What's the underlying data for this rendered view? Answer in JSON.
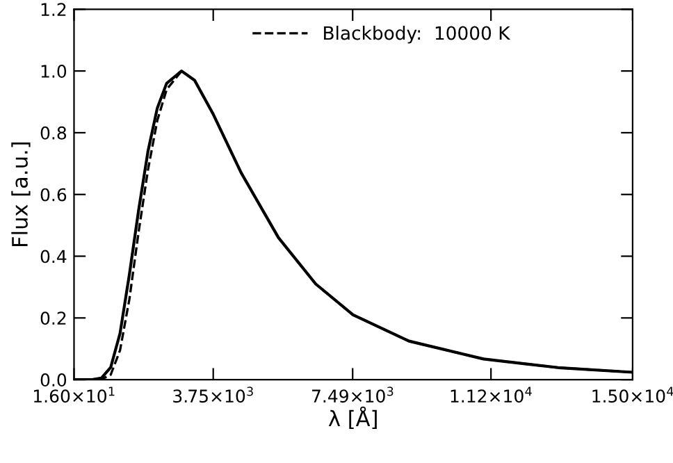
{
  "chart_data": {
    "type": "line",
    "xlabel": "λ [Å]",
    "ylabel": "Flux [a.u.]",
    "xlim": [
      16,
      15000
    ],
    "ylim": [
      0,
      1.2
    ],
    "xticks": [
      {
        "value": 16,
        "label": "1.60×10$^{1}$"
      },
      {
        "value": 3750,
        "label": "3.75×10$^{3}$"
      },
      {
        "value": 7490,
        "label": "7.49×10$^{3}$"
      },
      {
        "value": 11200,
        "label": "1.12×10$^{4}$"
      },
      {
        "value": 15000,
        "label": "1.50×10$^{4}$"
      }
    ],
    "yticks": [
      {
        "value": 0,
        "label": "0.0"
      },
      {
        "value": 0.2,
        "label": "0.2"
      },
      {
        "value": 0.4,
        "label": "0.4"
      },
      {
        "value": 0.6,
        "label": "0.6"
      },
      {
        "value": 0.8,
        "label": "0.8"
      },
      {
        "value": 1.0,
        "label": "1.0"
      },
      {
        "value": 1.2,
        "label": "1.2"
      }
    ],
    "legend": "top",
    "grid": false,
    "series": [
      {
        "color": "#000000",
        "line_style": "solid",
        "x": [
          16,
          500,
          750,
          1000,
          1250,
          1500,
          1750,
          2000,
          2250,
          2500,
          2900,
          3250,
          3750,
          4500,
          5500,
          6500,
          7500,
          9000,
          11000,
          13000,
          15000
        ],
        "values": [
          0,
          0,
          0.005,
          0.04,
          0.15,
          0.34,
          0.55,
          0.74,
          0.88,
          0.96,
          1.0,
          0.97,
          0.86,
          0.67,
          0.46,
          0.31,
          0.21,
          0.125,
          0.067,
          0.039,
          0.024
        ]
      },
      {
        "name": "Blackbody:  10000 K",
        "color": "#000000",
        "line_style": "dashed",
        "x": [
          16,
          500,
          750,
          1000,
          1250,
          1500,
          1750,
          2000,
          2250,
          2500,
          2900,
          3250,
          3750,
          4500,
          5500,
          6500,
          7500,
          9000,
          11000,
          13000,
          15000
        ],
        "values": [
          0,
          0,
          0.001,
          0.016,
          0.095,
          0.26,
          0.48,
          0.68,
          0.84,
          0.94,
          1.0,
          0.97,
          0.86,
          0.67,
          0.46,
          0.31,
          0.21,
          0.125,
          0.067,
          0.039,
          0.024
        ]
      }
    ]
  }
}
